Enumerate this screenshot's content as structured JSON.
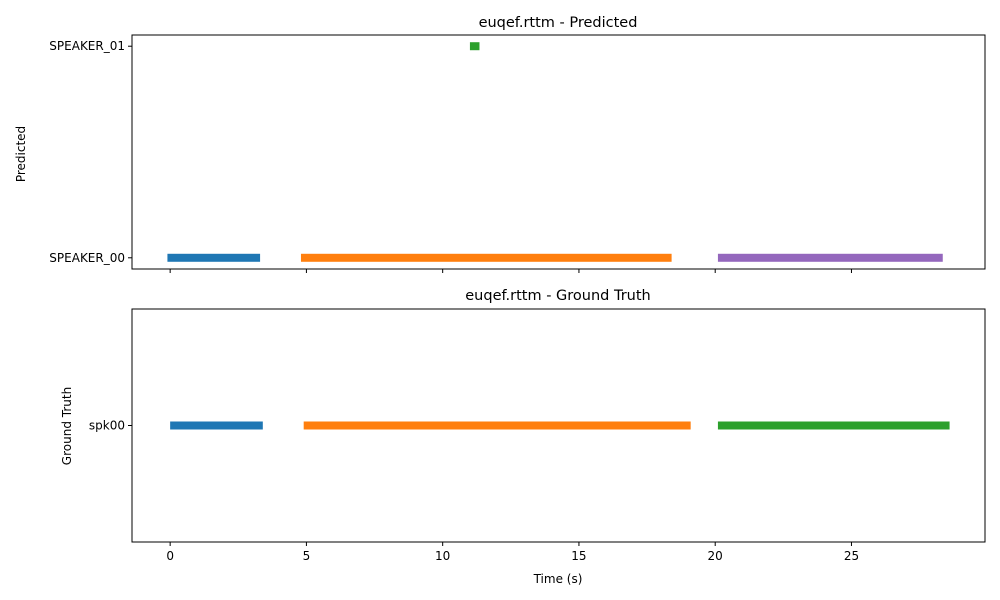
{
  "chart_data": [
    {
      "type": "timeline",
      "title": "euqef.rttm - Predicted",
      "ylabel": "Predicted",
      "xlabel": "",
      "xlim": [
        -1.4,
        29.9
      ],
      "xticks": [
        0,
        5,
        10,
        15,
        20,
        25
      ],
      "xtick_labels_visible": false,
      "categories": [
        "SPEAKER_00",
        "SPEAKER_01"
      ],
      "segments": [
        {
          "speaker": "SPEAKER_00",
          "start": -0.1,
          "end": 3.3,
          "color": "#1f77b4"
        },
        {
          "speaker": "SPEAKER_00",
          "start": 4.8,
          "end": 18.4,
          "color": "#ff7f0e"
        },
        {
          "speaker": "SPEAKER_01",
          "start": 11.0,
          "end": 11.35,
          "color": "#2ca02c"
        },
        {
          "speaker": "SPEAKER_00",
          "start": 20.1,
          "end": 28.35,
          "color": "#9467bd"
        }
      ]
    },
    {
      "type": "timeline",
      "title": "euqef.rttm - Ground Truth",
      "ylabel": "Ground Truth",
      "xlabel": "Time (s)",
      "xlim": [
        -1.4,
        29.9
      ],
      "xticks": [
        0,
        5,
        10,
        15,
        20,
        25
      ],
      "xtick_labels_visible": true,
      "categories": [
        "spk00"
      ],
      "segments": [
        {
          "speaker": "spk00",
          "start": 0.0,
          "end": 3.4,
          "color": "#1f77b4"
        },
        {
          "speaker": "spk00",
          "start": 4.9,
          "end": 19.1,
          "color": "#ff7f0e"
        },
        {
          "speaker": "spk00",
          "start": 20.1,
          "end": 28.6,
          "color": "#2ca02c"
        }
      ]
    }
  ]
}
